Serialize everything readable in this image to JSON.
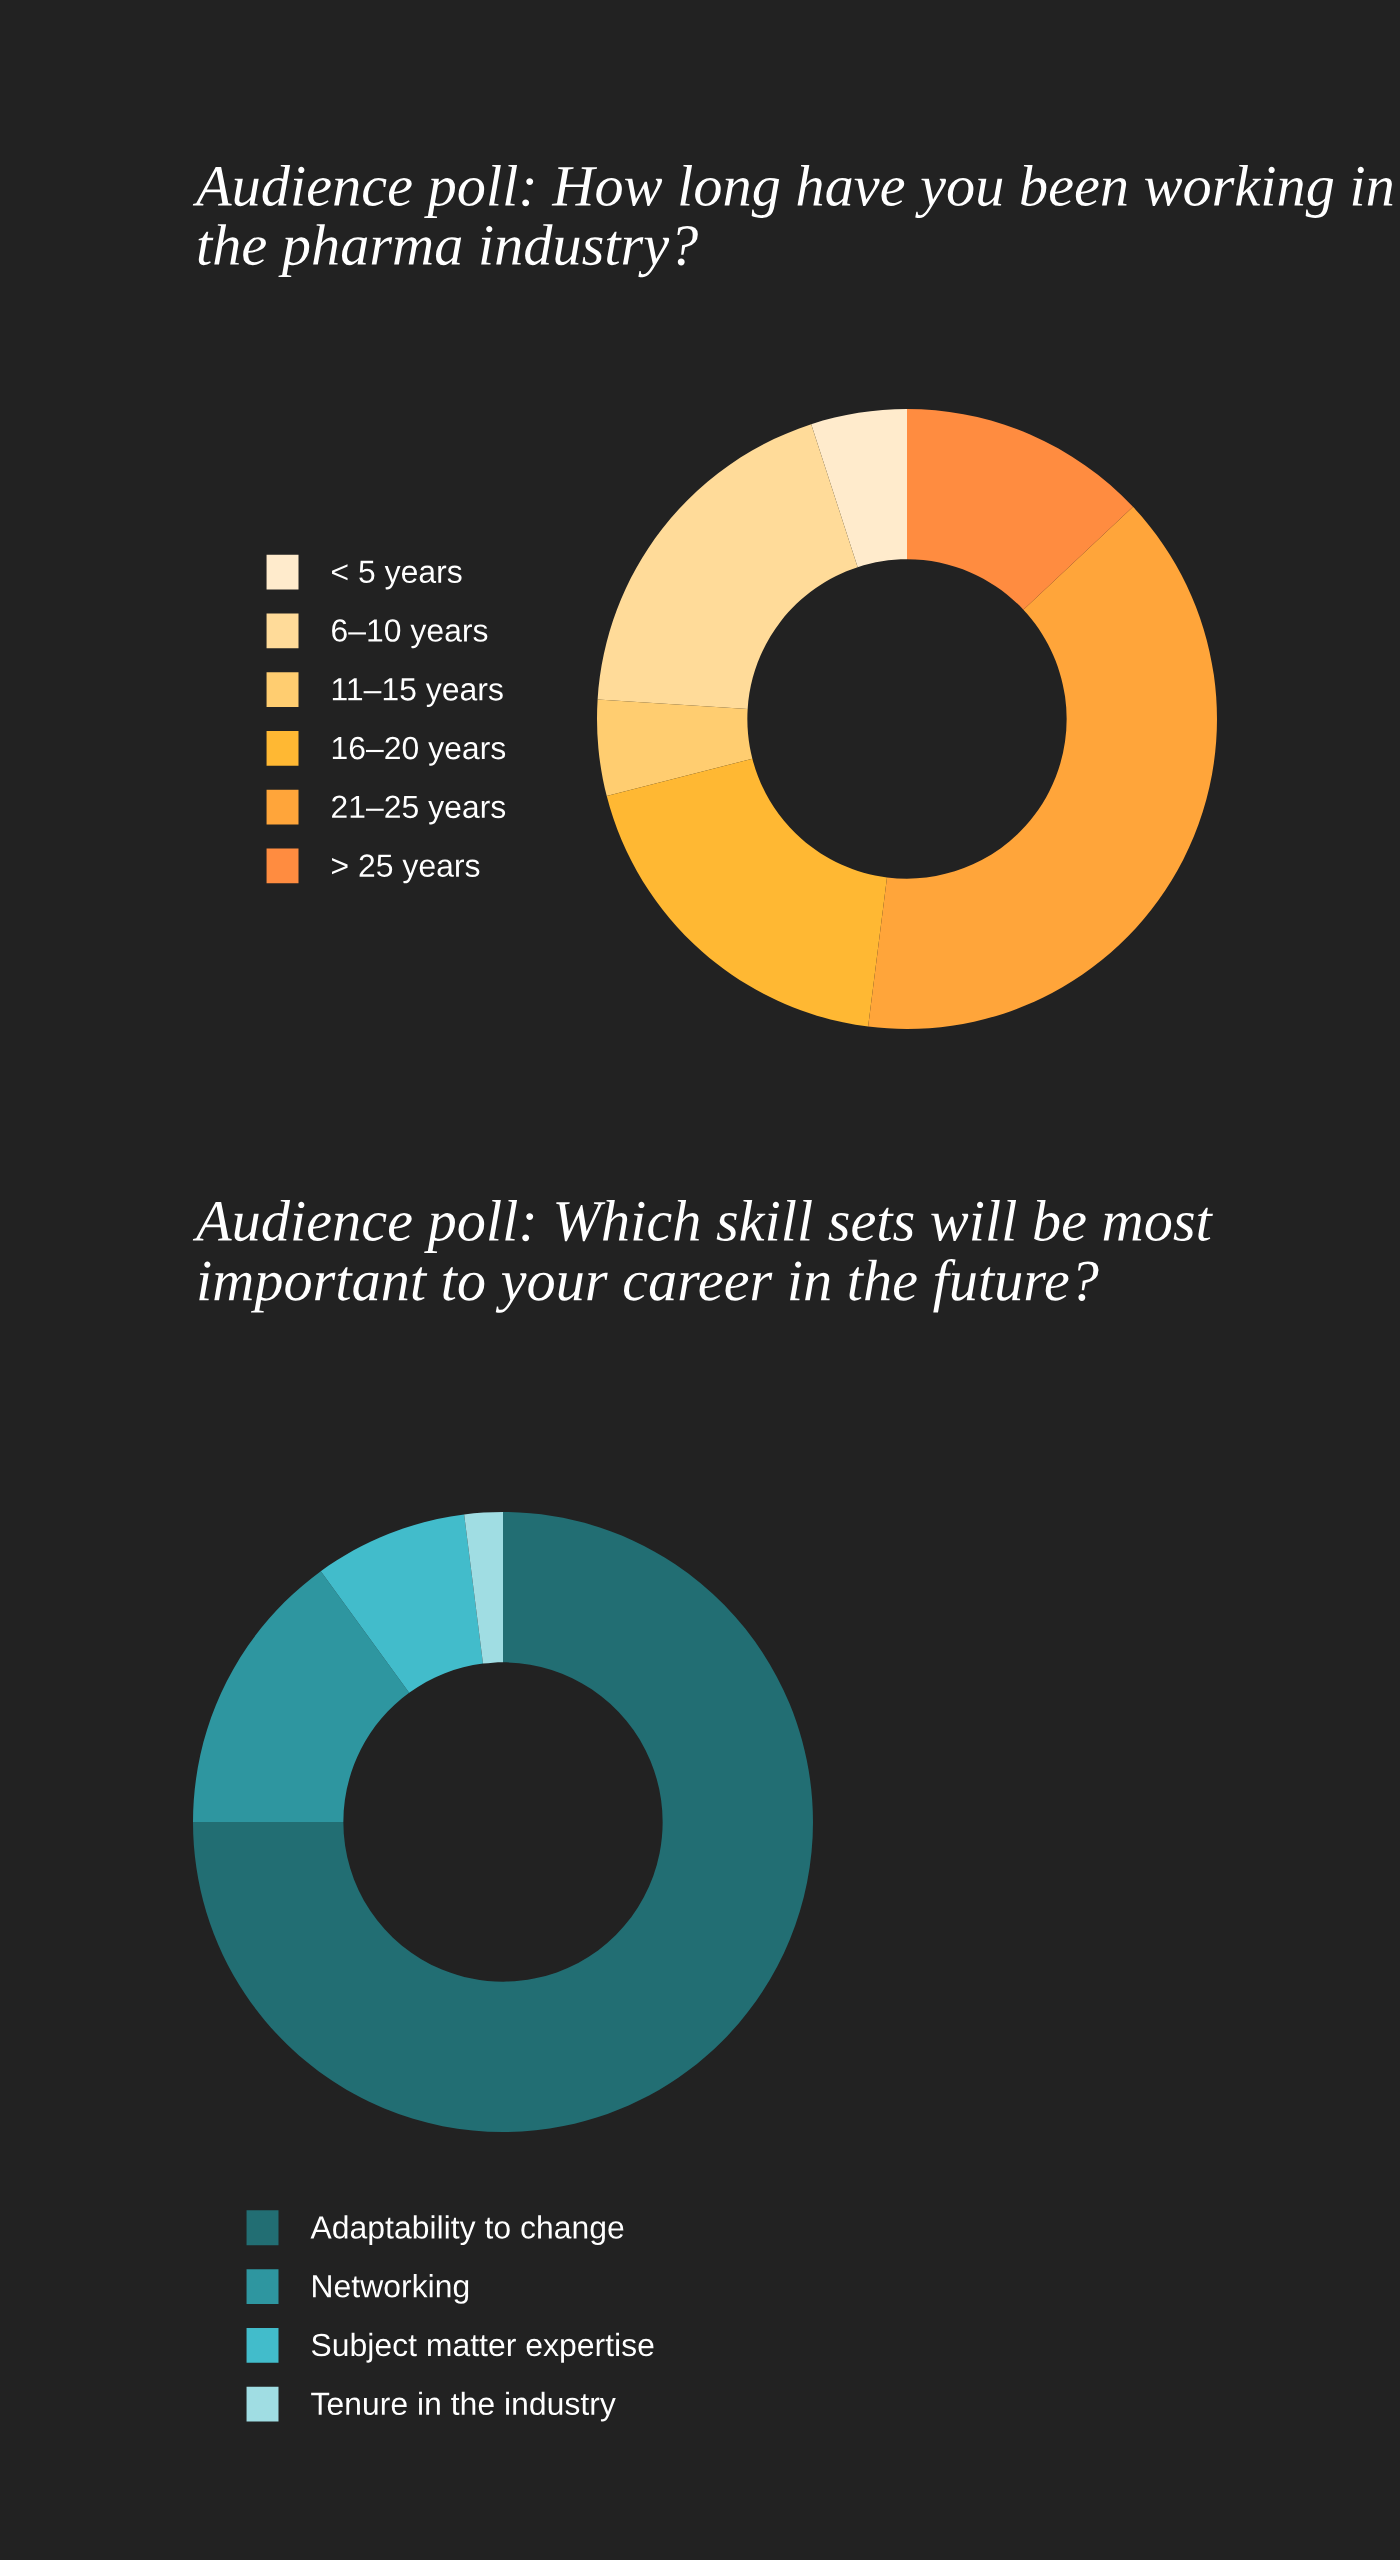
{
  "chart_data": [
    {
      "type": "donut",
      "title": "Audience poll: How long have you been working in the pharma industry?",
      "legend": "left",
      "categories": [
        "< 5 years",
        "6–10 years",
        "11–15 years",
        "16–20 years",
        "21–25 years",
        "> 25 years"
      ],
      "values": [
        5,
        19,
        5,
        19,
        39,
        13
      ],
      "colors": [
        "#ffebcc",
        "#ffdb99",
        "#ffcd70",
        "#ffb833",
        "#ffa53a",
        "#ff8c40"
      ]
    },
    {
      "type": "donut",
      "title": "Audience poll: Which skill sets will be most important to your career in the future?",
      "legend": "bottom",
      "categories": [
        "Adaptability to change",
        "Networking",
        "Subject matter expertise",
        "Tenure in the industry"
      ],
      "values": [
        75,
        15,
        8,
        2
      ],
      "colors": [
        "#226e73",
        "#2e96a0",
        "#42bccb",
        "#a0dde3"
      ]
    }
  ]
}
